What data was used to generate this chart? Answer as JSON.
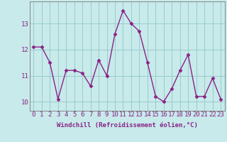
{
  "x": [
    0,
    1,
    2,
    3,
    4,
    5,
    6,
    7,
    8,
    9,
    10,
    11,
    12,
    13,
    14,
    15,
    16,
    17,
    18,
    19,
    20,
    21,
    22,
    23
  ],
  "y": [
    12.1,
    12.1,
    11.5,
    10.1,
    11.2,
    11.2,
    11.1,
    10.6,
    11.6,
    11.0,
    12.6,
    13.5,
    13.0,
    12.7,
    11.5,
    10.2,
    10.0,
    10.5,
    11.2,
    11.8,
    10.2,
    10.2,
    10.9,
    10.1
  ],
  "line_color": "#882288",
  "marker_color": "#882288",
  "bg_color": "#c8eaea",
  "grid_color": "#99cccc",
  "axis_color": "#882288",
  "tick_color": "#882288",
  "xlabel": "Windchill (Refroidissement éolien,°C)",
  "ylabel_ticks": [
    10,
    11,
    12,
    13
  ],
  "xlim": [
    -0.5,
    23.5
  ],
  "ylim": [
    9.65,
    13.85
  ],
  "xtick_labels": [
    "0",
    "1",
    "2",
    "3",
    "4",
    "5",
    "6",
    "7",
    "8",
    "9",
    "10",
    "11",
    "12",
    "13",
    "14",
    "15",
    "16",
    "17",
    "18",
    "19",
    "20",
    "21",
    "22",
    "23"
  ],
  "xlabel_fontsize": 6.5,
  "tick_fontsize": 6.5,
  "marker_size": 2.5,
  "line_width": 1.0
}
